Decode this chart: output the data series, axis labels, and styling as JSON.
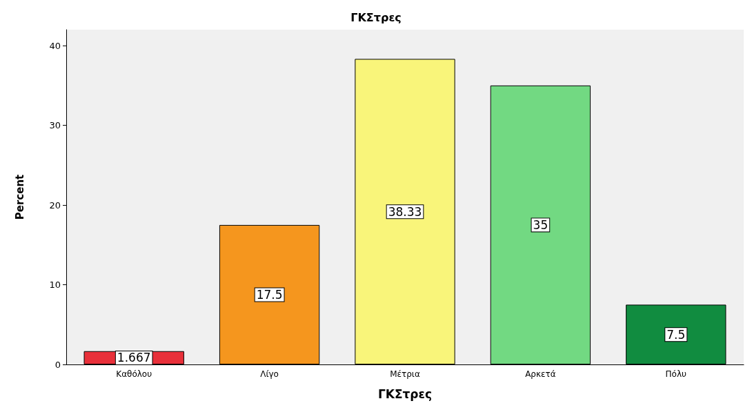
{
  "chart_data": {
    "type": "bar",
    "title": "ΓΚΣτρες",
    "xlabel": "ΓΚΣτρες",
    "ylabel": "Percent",
    "categories": [
      "Καθόλου",
      "Λίγο",
      "Μέτρια",
      "Αρκετά",
      "Πόλυ"
    ],
    "values": [
      1.667,
      17.5,
      38.33,
      35,
      7.5
    ],
    "colors": [
      "#e8303a",
      "#f5961e",
      "#f9f57a",
      "#72d982",
      "#118c40"
    ],
    "ylim": [
      0,
      42
    ],
    "yticks": [
      0,
      10,
      20,
      30,
      40
    ],
    "data_labels": true
  }
}
